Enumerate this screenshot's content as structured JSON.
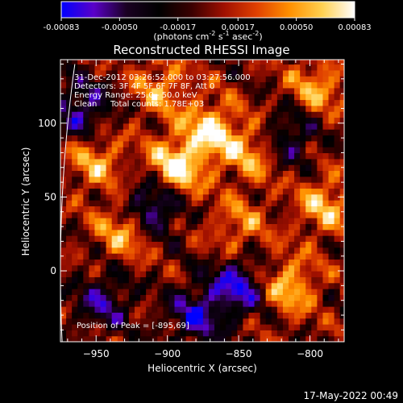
{
  "colorbar": {
    "ticks": [
      "-0.00083",
      "-0.00050",
      "-0.00017",
      "0.00017",
      "0.00050",
      "0.00083"
    ],
    "tick_values": [
      -0.00083,
      -0.0005,
      -0.00017,
      0.00017,
      0.0005,
      0.00083
    ],
    "range": [
      -0.00083,
      0.00083
    ],
    "unit_pre": "(photons cm",
    "unit_sup1": "-2",
    "unit_mid": " s",
    "unit_sup2": "-1",
    "unit_post": " asec",
    "unit_sup3": "-2",
    "unit_close": ")",
    "palette": [
      "#0000ff",
      "#5a00c8",
      "#1a0022",
      "#000000",
      "#3a0000",
      "#a01000",
      "#e04000",
      "#ff9000",
      "#ffd050",
      "#ffffff"
    ]
  },
  "chart_data": {
    "type": "heatmap",
    "title": "Reconstructed RHESSI Image",
    "xlabel": "Heliocentric X (arcsec)",
    "ylabel": "Heliocentric Y (arcsec)",
    "xlim": [
      -975,
      -776
    ],
    "ylim": [
      -48,
      143
    ],
    "x_ticks": [
      -950,
      -900,
      -850,
      -800
    ],
    "x_tick_labels": [
      "−950",
      "−900",
      "−850",
      "−800"
    ],
    "y_ticks": [
      0,
      50,
      100
    ],
    "y_tick_labels": [
      "0",
      "50",
      "100"
    ],
    "peak": {
      "x": -895,
      "y": 69
    },
    "hotspots": [
      {
        "x": -895,
        "y": 69,
        "value": 0.00083
      },
      {
        "x": -870,
        "y": 95,
        "value": 0.0007
      },
      {
        "x": -930,
        "y": 28,
        "value": 0.00055
      },
      {
        "x": -840,
        "y": 80,
        "value": 0.0005
      },
      {
        "x": -790,
        "y": 45,
        "value": 0.00055
      },
      {
        "x": -815,
        "y": -10,
        "value": 0.0006
      },
      {
        "x": -795,
        "y": 125,
        "value": 0.0005
      },
      {
        "x": -950,
        "y": 75,
        "value": 0.0005
      },
      {
        "x": -905,
        "y": 125,
        "value": 0.00045
      },
      {
        "x": -850,
        "y": 30,
        "value": 0.0004
      }
    ],
    "coldspots": [
      {
        "x": -910,
        "y": 45,
        "value": -0.0008
      },
      {
        "x": -850,
        "y": -10,
        "value": -0.0007
      },
      {
        "x": -960,
        "y": 110,
        "value": -0.0006
      },
      {
        "x": -880,
        "y": -30,
        "value": -0.0006
      },
      {
        "x": -815,
        "y": 90,
        "value": -0.0005
      },
      {
        "x": -945,
        "y": -20,
        "value": -0.0005
      }
    ],
    "limb": true,
    "grid": false
  },
  "annotations": {
    "time": "31-Dec-2012 03:26:52.000 to 03:27:56.000",
    "detectors": "Detectors: 3F 4F 5F 6F 7F 8F, Att 0",
    "energy": "Energy Range: 25.0 - 50.0 keV",
    "clean": "Clean",
    "counts": "Total counts: 1.78E+03",
    "peak": "Position of Peak = [-895,69]"
  },
  "footer": {
    "timestamp": "17-May-2022 00:49"
  }
}
